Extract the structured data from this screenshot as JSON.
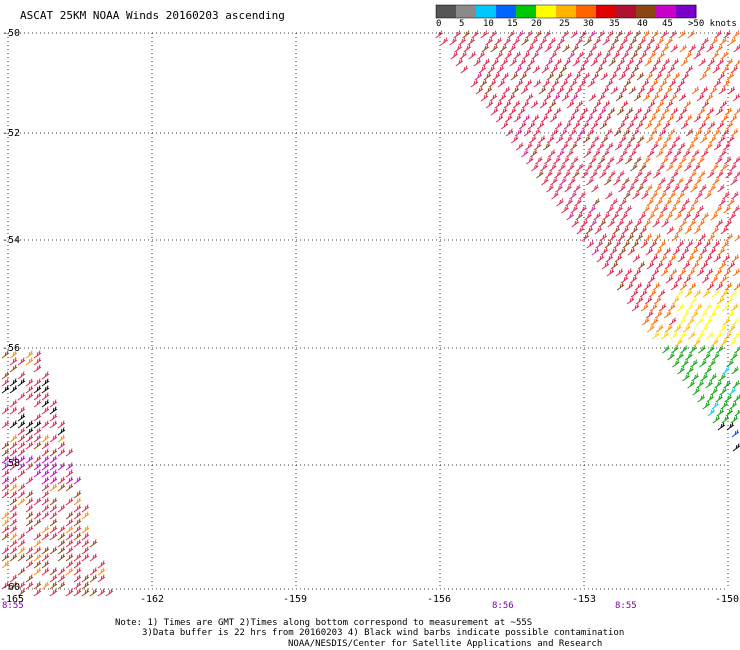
{
  "title": "ASCAT 25KM NOAA Winds 20160203 ascending",
  "legend": {
    "labels": [
      "0",
      "5",
      "10",
      "15",
      "20",
      "25",
      "30",
      "35",
      "40",
      "45",
      ">50 knots"
    ],
    "colors": [
      "#555555",
      "#8a8a8a",
      "#00c8ff",
      "#0064ff",
      "#00c800",
      "#ffff00",
      "#ffb400",
      "#ff6400",
      "#e00000",
      "#b01030",
      "#8b4513",
      "#c800c8",
      "#7800c8"
    ]
  },
  "lat_labels": [
    "-50",
    "-52",
    "-54",
    "-56",
    "-58",
    "-60"
  ],
  "lon_labels": [
    "-165",
    "-162",
    "-159",
    "-156",
    "-153",
    "-150"
  ],
  "time_labels": [
    "8:55",
    "8:56",
    "8:55"
  ],
  "notes": {
    "line1": "Note: 1) Times are GMT 2)Times along bottom correspond to measurement at ~55S",
    "line2": "3)Data buffer is 22 hrs from 20160203 4) Black wind barbs indicate possible contamination",
    "line3": "NOAA/NESDIS/Center for Satellite Applications and Research"
  }
}
